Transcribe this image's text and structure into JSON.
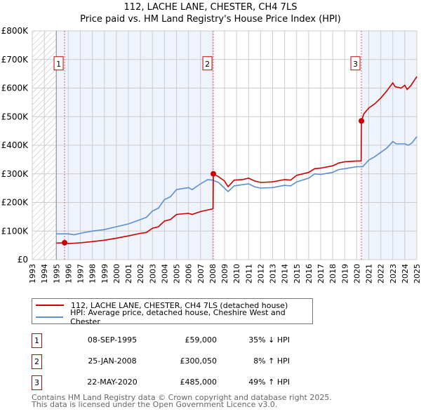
{
  "chart_data": {
    "type": "line",
    "title": "112, LACHE LANE, CHESTER, CH4 7LS",
    "subtitle": "Price paid vs. HM Land Registry's House Price Index (HPI)",
    "xlim": [
      1993,
      2025
    ],
    "ylim": [
      0,
      800000
    ],
    "x_ticks": [
      "1993",
      "1994",
      "1995",
      "1996",
      "1997",
      "1998",
      "1999",
      "2000",
      "2001",
      "2002",
      "2003",
      "2004",
      "2005",
      "2006",
      "2007",
      "2008",
      "2009",
      "2010",
      "2011",
      "2012",
      "2013",
      "2014",
      "2015",
      "2016",
      "2017",
      "2018",
      "2019",
      "2020",
      "2021",
      "2022",
      "2023",
      "2024",
      "2025"
    ],
    "y_ticks": [
      {
        "v": 0,
        "label": "£0"
      },
      {
        "v": 100000,
        "label": "£100K"
      },
      {
        "v": 200000,
        "label": "£200K"
      },
      {
        "v": 300000,
        "label": "£300K"
      },
      {
        "v": 400000,
        "label": "£400K"
      },
      {
        "v": 500000,
        "label": "£500K"
      },
      {
        "v": 600000,
        "label": "£600K"
      },
      {
        "v": 700000,
        "label": "£700K"
      },
      {
        "v": 800000,
        "label": "£800K"
      }
    ],
    "grid": true,
    "series": [
      {
        "name": "112, LACHE LANE, CHESTER, CH4 7LS (detached house)",
        "color": "#cc0000",
        "x": [
          1995,
          1995.7,
          1996,
          1997,
          1998,
          1999,
          2000,
          2001,
          2002,
          2002.5,
          2003,
          2003.5,
          2004,
          2004.5,
          2005,
          2006,
          2006.3,
          2007,
          2008.05,
          2008.07,
          2008.5,
          2009,
          2009.3,
          2009.8,
          2010.5,
          2011,
          2011.5,
          2012,
          2013,
          2014,
          2014.5,
          2015,
          2016,
          2016.5,
          2017,
          2018,
          2018.5,
          2019,
          2020,
          2020.37,
          2020.39,
          2020.6,
          2021,
          2021.5,
          2022,
          2022.5,
          2023,
          2023.2,
          2023.7,
          2024,
          2024.2,
          2024.5,
          2025
        ],
        "y": [
          58000,
          59000,
          56000,
          59000,
          63000,
          68000,
          75000,
          83000,
          92000,
          95000,
          110000,
          115000,
          135000,
          140000,
          158000,
          162000,
          158000,
          168000,
          178000,
          300050,
          290000,
          275000,
          255000,
          278000,
          280000,
          285000,
          275000,
          270000,
          272000,
          280000,
          278000,
          295000,
          305000,
          318000,
          320000,
          328000,
          338000,
          342000,
          345000,
          345000,
          485000,
          510000,
          530000,
          545000,
          565000,
          590000,
          618000,
          605000,
          600000,
          610000,
          595000,
          608000,
          640000
        ]
      },
      {
        "name": "HPI: Average price, detached house, Cheshire West and Chester",
        "color": "#5b8fd0",
        "x": [
          1995,
          1996,
          1996.5,
          1997,
          1998,
          1999,
          2000,
          2001,
          2002,
          2002.5,
          2003,
          2003.5,
          2004,
          2004.5,
          2005,
          2006,
          2006.3,
          2007,
          2007.6,
          2008,
          2008.5,
          2009.3,
          2009.8,
          2010.5,
          2011,
          2011.5,
          2012,
          2013,
          2014,
          2014.5,
          2015,
          2016,
          2016.5,
          2017,
          2018,
          2018.5,
          2019,
          2020,
          2020.5,
          2021,
          2021.5,
          2022,
          2022.5,
          2023,
          2023.3,
          2024,
          2024.3,
          2024.6,
          2025
        ],
        "y": [
          90000,
          90000,
          87000,
          92000,
          100000,
          105000,
          115000,
          125000,
          140000,
          148000,
          170000,
          180000,
          210000,
          220000,
          245000,
          252000,
          245000,
          265000,
          280000,
          278000,
          270000,
          238000,
          258000,
          262000,
          265000,
          255000,
          250000,
          252000,
          260000,
          258000,
          272000,
          285000,
          300000,
          298000,
          305000,
          315000,
          318000,
          325000,
          325000,
          348000,
          360000,
          375000,
          390000,
          413000,
          405000,
          405000,
          400000,
          408000,
          430000
        ]
      }
    ],
    "transactions": [
      {
        "id": "1",
        "x": 1995.69,
        "y": 59000
      },
      {
        "id": "2",
        "x": 2008.07,
        "y": 300050
      },
      {
        "id": "3",
        "x": 2020.39,
        "y": 485000
      }
    ],
    "legend_position": "bottom"
  },
  "legend": [
    {
      "label": "112, LACHE LANE, CHESTER, CH4 7LS (detached house)",
      "color": "#cc0000"
    },
    {
      "label": "HPI: Average price, detached house, Cheshire West and Chester",
      "color": "#5b8fd0"
    }
  ],
  "table": [
    {
      "id": "1",
      "date": "08-SEP-1995",
      "price": "£59,000",
      "hpi": "35% ↓ HPI"
    },
    {
      "id": "2",
      "date": "25-JAN-2008",
      "price": "£300,050",
      "hpi": "8% ↑ HPI"
    },
    {
      "id": "3",
      "date": "22-MAY-2020",
      "price": "£485,000",
      "hpi": "49% ↑ HPI"
    }
  ],
  "footer": {
    "line1": "Contains HM Land Registry data © Crown copyright and database right 2025.",
    "line2": "This data is licensed under the Open Government Licence v3.0."
  }
}
